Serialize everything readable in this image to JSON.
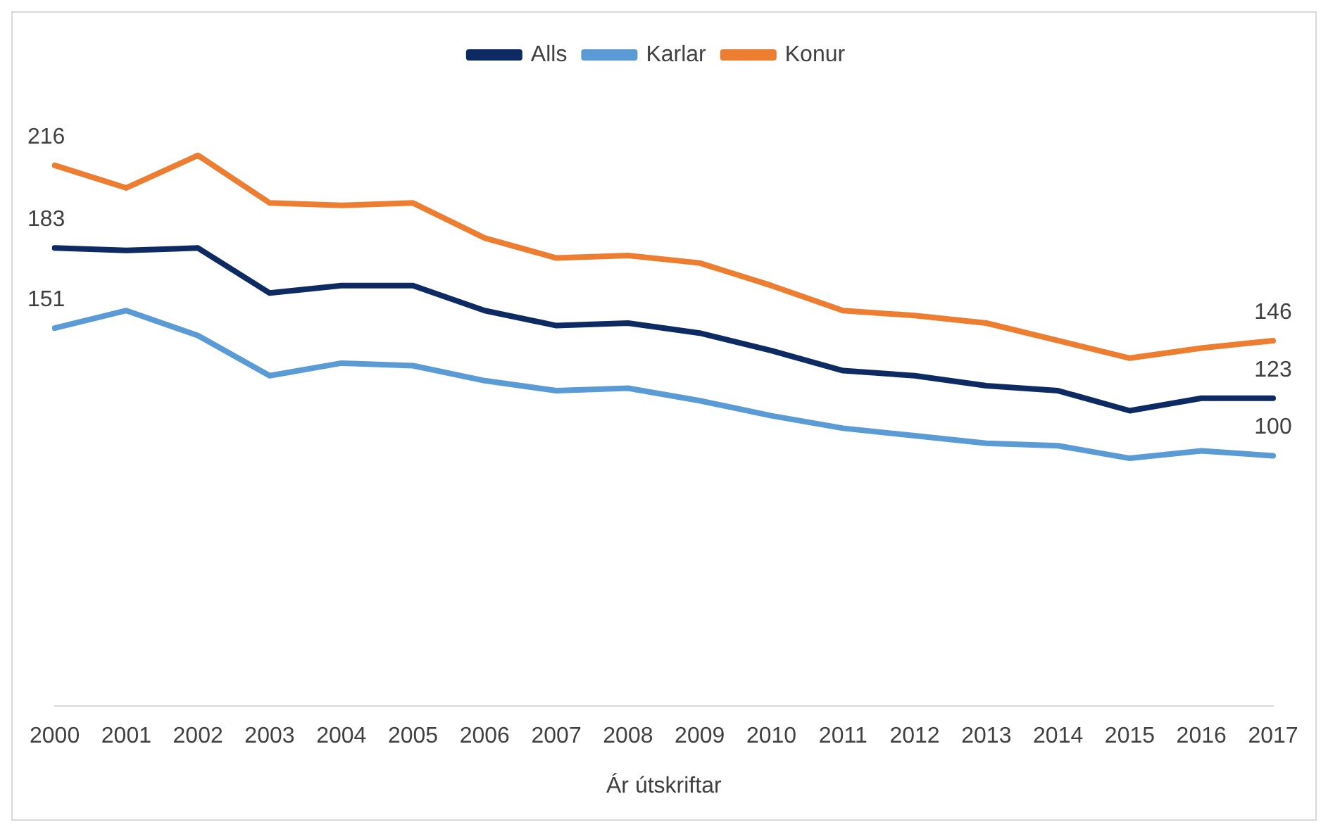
{
  "chart_data": {
    "type": "line",
    "xlabel": "Ár útskriftar",
    "categories": [
      "2000",
      "2001",
      "2002",
      "2003",
      "2004",
      "2005",
      "2006",
      "2007",
      "2008",
      "2009",
      "2010",
      "2011",
      "2012",
      "2013",
      "2014",
      "2015",
      "2016",
      "2017"
    ],
    "series": [
      {
        "name": "Alls",
        "color": "#0e2a63",
        "values": [
          183,
          182,
          183,
          165,
          168,
          168,
          158,
          152,
          153,
          149,
          142,
          134,
          132,
          128,
          126,
          118,
          123,
          123
        ],
        "value_labels": [
          "183",
          null,
          null,
          null,
          null,
          null,
          null,
          null,
          null,
          null,
          null,
          null,
          null,
          null,
          null,
          null,
          null,
          "123"
        ]
      },
      {
        "name": "Karlar",
        "color": "#5b9bd5",
        "values": [
          151,
          158,
          148,
          132,
          137,
          136,
          130,
          126,
          127,
          122,
          116,
          111,
          108,
          105,
          104,
          99,
          102,
          100
        ],
        "value_labels": [
          "151",
          null,
          null,
          null,
          null,
          null,
          null,
          null,
          null,
          null,
          null,
          null,
          null,
          null,
          null,
          null,
          null,
          "100"
        ]
      },
      {
        "name": "Konur",
        "color": "#ed7d31",
        "values": [
          216,
          207,
          220,
          201,
          200,
          201,
          187,
          179,
          180,
          177,
          168,
          158,
          156,
          153,
          146,
          139,
          143,
          146
        ],
        "value_labels": [
          "216",
          null,
          null,
          null,
          null,
          null,
          null,
          null,
          null,
          null,
          null,
          null,
          null,
          null,
          null,
          null,
          null,
          "146"
        ]
      }
    ],
    "tick_labels": "x",
    "grid": false,
    "legend": "top",
    "marker": "none",
    "line_style": "solid"
  }
}
